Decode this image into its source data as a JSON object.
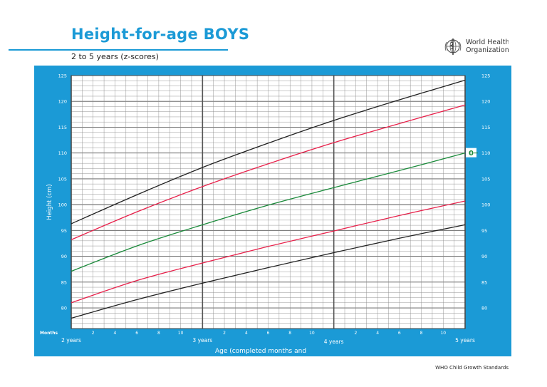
{
  "header": {
    "title": "Height-for-age BOYS",
    "subtitle": "2 to 5 years (z-scores)"
  },
  "logo": {
    "line1": "World Health",
    "line2": "Organization"
  },
  "footer": {
    "text": "WHO Child Growth Standards"
  },
  "colors": {
    "panel": "#1b9ad6",
    "title": "#1b9ad6",
    "plot_background": "#ffffff",
    "grid": "#8a8a8a",
    "grid_major": "#555555",
    "line_z3": "#222222",
    "line_z2": "#e8204a",
    "line_z0": "#1a8a3a",
    "zero_label": "#1a8a3a"
  },
  "chart_data": {
    "type": "line",
    "title": "Height-for-age BOYS",
    "subtitle": "2 to 5 years (z-scores)",
    "xlabel": "Age (completed months and",
    "ylabel": "Height (cm)",
    "xlim": [
      24,
      60
    ],
    "ylim": [
      76,
      125
    ],
    "x_axis_caption": "Months",
    "x_month_ticks": [
      {
        "age": 26,
        "label": "2"
      },
      {
        "age": 28,
        "label": "4"
      },
      {
        "age": 30,
        "label": "6"
      },
      {
        "age": 32,
        "label": "8"
      },
      {
        "age": 34,
        "label": "10"
      },
      {
        "age": 38,
        "label": "2"
      },
      {
        "age": 40,
        "label": "4"
      },
      {
        "age": 42,
        "label": "6"
      },
      {
        "age": 44,
        "label": "8"
      },
      {
        "age": 46,
        "label": "10"
      },
      {
        "age": 50,
        "label": "2"
      },
      {
        "age": 52,
        "label": "4"
      },
      {
        "age": 54,
        "label": "6"
      },
      {
        "age": 56,
        "label": "8"
      },
      {
        "age": 58,
        "label": "10"
      }
    ],
    "x_year_ticks": [
      {
        "age": 24,
        "label": "2 years"
      },
      {
        "age": 36,
        "label": "3 years"
      },
      {
        "age": 48,
        "label": "4 years"
      },
      {
        "age": 60,
        "label": "5 years"
      }
    ],
    "y_ticks": [
      80,
      85,
      90,
      95,
      100,
      105,
      110,
      115,
      120,
      125
    ],
    "grid": true,
    "series_annotation": "0",
    "x": [
      24,
      30,
      36,
      42,
      48,
      54,
      60
    ],
    "series": [
      {
        "z": 3,
        "color": "#222222",
        "values": [
          96.3,
          101.9,
          107.2,
          111.9,
          116.3,
          120.3,
          124.1
        ]
      },
      {
        "z": 2,
        "color": "#e8204a",
        "values": [
          93.2,
          98.6,
          103.5,
          107.9,
          112.0,
          115.7,
          119.3
        ]
      },
      {
        "z": 0,
        "color": "#1a8a3a",
        "values": [
          87.1,
          92.0,
          96.1,
          99.9,
          103.3,
          106.6,
          110.0
        ]
      },
      {
        "z": -2,
        "color": "#e8204a",
        "values": [
          81.0,
          85.3,
          88.7,
          91.9,
          94.9,
          97.9,
          100.7
        ]
      },
      {
        "z": -3,
        "color": "#222222",
        "values": [
          78.0,
          81.6,
          84.8,
          87.8,
          90.7,
          93.5,
          96.1
        ]
      }
    ]
  }
}
